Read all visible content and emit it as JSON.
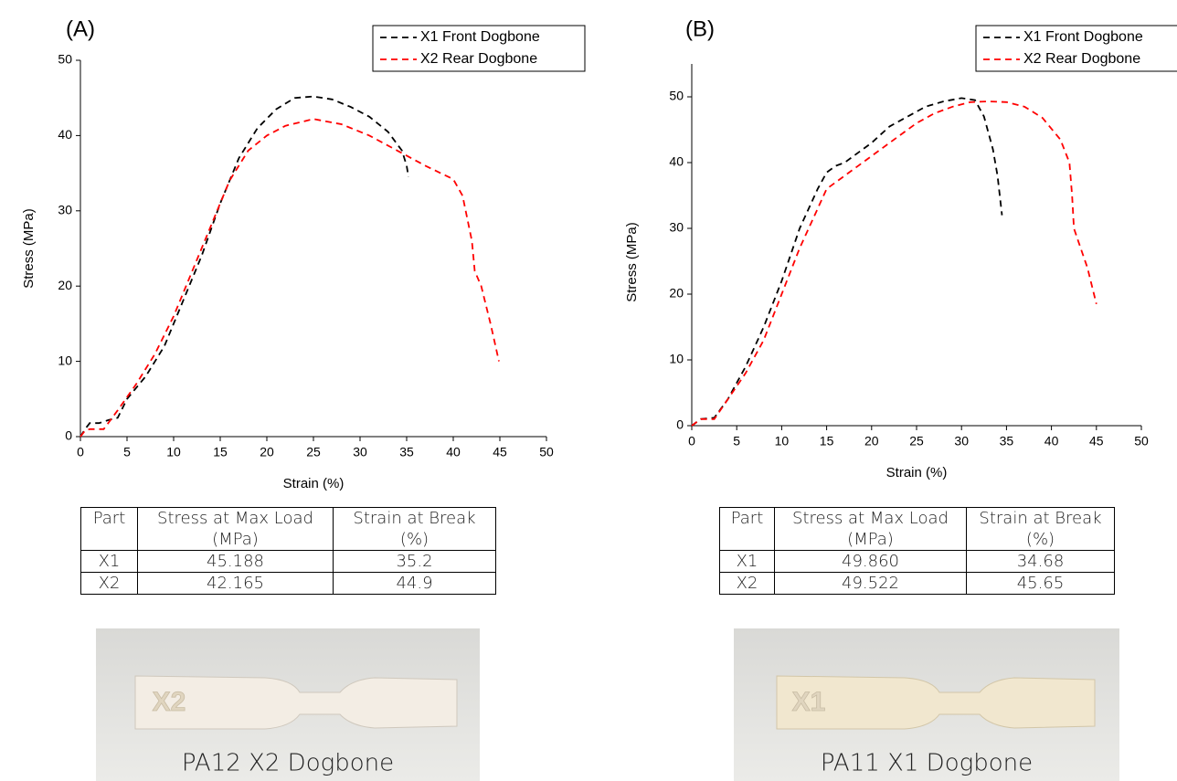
{
  "chart_data": [
    {
      "type": "line",
      "panel": "(A)",
      "xlabel": "Strain (%)",
      "ylabel": "Stress (MPa)",
      "xlim": [
        0,
        50
      ],
      "ylim": [
        0,
        50
      ],
      "xticks": [
        0,
        5,
        10,
        15,
        20,
        25,
        30,
        35,
        40,
        45,
        50
      ],
      "yticks": [
        0,
        10,
        20,
        30,
        40,
        50
      ],
      "legend": "upper right",
      "line_style": "dashed",
      "series": [
        {
          "name": "X1 Front Dogbone",
          "color": "#000000",
          "x": [
            0,
            0.5,
            1,
            2,
            3,
            4,
            5,
            7,
            9,
            11,
            13,
            15,
            17,
            19,
            21,
            23,
            25,
            27,
            29,
            31,
            33,
            34.5,
            35,
            35.2
          ],
          "values": [
            0,
            1,
            1.8,
            1.8,
            2.2,
            2.5,
            5,
            8,
            12,
            18,
            24,
            31,
            37,
            41,
            43.5,
            45,
            45.2,
            44.8,
            43.8,
            42.5,
            40.5,
            38,
            36,
            34.5
          ]
        },
        {
          "name": "X2 Rear Dogbone",
          "color": "#ff0000",
          "x": [
            0,
            0.5,
            1,
            2.5,
            4,
            6,
            8,
            10,
            12,
            14,
            16,
            18,
            20,
            22,
            25,
            28,
            31,
            34,
            37,
            40,
            41,
            42,
            42.3,
            43,
            44,
            44.9
          ],
          "values": [
            0,
            0.8,
            1,
            1,
            3.5,
            7,
            11,
            16,
            22,
            28,
            34,
            38,
            40,
            41.3,
            42.2,
            41.5,
            40,
            38,
            36,
            34.2,
            32,
            26,
            22,
            20,
            15,
            10
          ]
        }
      ]
    },
    {
      "type": "line",
      "panel": "(B)",
      "xlabel": "Strain (%)",
      "ylabel": "Stress (MPa)",
      "xlim": [
        0,
        50
      ],
      "ylim": [
        0,
        55
      ],
      "xticks": [
        0,
        5,
        10,
        15,
        20,
        25,
        30,
        35,
        40,
        45,
        50
      ],
      "yticks": [
        0,
        10,
        20,
        30,
        40,
        50
      ],
      "legend": "upper right",
      "line_style": "dashed",
      "series": [
        {
          "name": "X1 Front Dogbone",
          "color": "#000000",
          "x": [
            0,
            1,
            2.5,
            4,
            6,
            8,
            10,
            12,
            14,
            15,
            16,
            17,
            18,
            20,
            22,
            24,
            26,
            28,
            30,
            31.5,
            32.5,
            33.5,
            34,
            34.5
          ],
          "values": [
            0,
            1,
            1.2,
            4,
            9,
            15,
            22,
            30,
            36,
            38.5,
            39.5,
            40,
            41,
            43,
            45.5,
            47,
            48.5,
            49.3,
            49.8,
            49.5,
            47,
            42,
            38,
            32
          ]
        },
        {
          "name": "X2 Rear Dogbone",
          "color": "#ff0000",
          "x": [
            0,
            1,
            2.5,
            4,
            6,
            8,
            10,
            12,
            14,
            15,
            17,
            19,
            21,
            23,
            25,
            27,
            29,
            31,
            33,
            35,
            37,
            39,
            41,
            42,
            42.3,
            42.5,
            43,
            44,
            45
          ],
          "values": [
            0,
            1,
            1,
            4,
            8,
            13,
            20,
            27,
            33,
            36,
            38,
            40,
            42,
            44,
            46,
            47.5,
            48.5,
            49.2,
            49.3,
            49.2,
            48.5,
            46.8,
            43.5,
            40,
            35,
            30,
            28,
            24,
            18.5
          ]
        }
      ]
    }
  ],
  "tables": [
    {
      "header": [
        "Part",
        "Stress at Max Load (MPa)",
        "Strain at Break (%)"
      ],
      "rows": [
        [
          "X1",
          "45.188",
          "35.2"
        ],
        [
          "X2",
          "42.165",
          "44.9"
        ]
      ]
    },
    {
      "header": [
        "Part",
        "Stress at Max Load (MPa)",
        "Strain at Break (%)"
      ],
      "rows": [
        [
          "X1",
          "49.860",
          "34.68"
        ],
        [
          "X2",
          "49.522",
          "45.65"
        ]
      ]
    }
  ],
  "photos": [
    {
      "marking": "X2",
      "caption": "PA12 X2 Dogbone"
    },
    {
      "marking": "X1",
      "caption": "PA11 X1 Dogbone"
    }
  ]
}
